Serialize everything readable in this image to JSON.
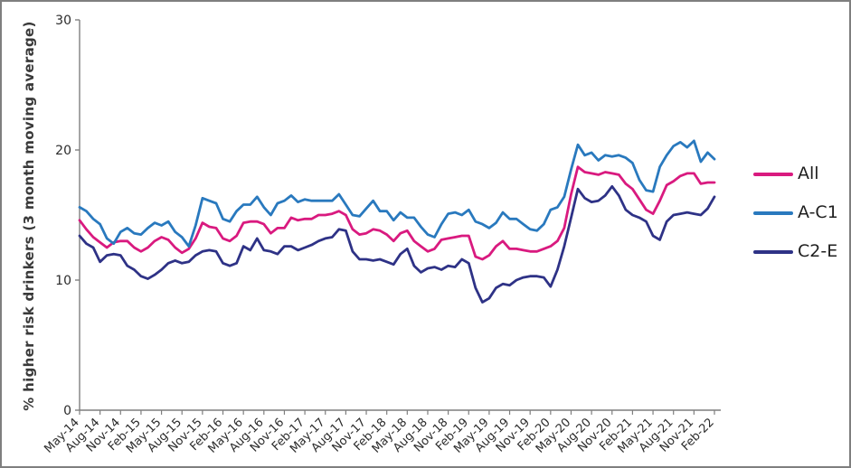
{
  "figure": {
    "background_color": "#ffffff",
    "border_color": "#7f7f7f",
    "axis_color": "#7f7f7f",
    "tick_label_color": "#2b2b2b"
  },
  "chart_data": {
    "type": "line",
    "title": "",
    "xlabel": "",
    "ylabel": "% higher risk drinkers (3 month moving average)",
    "ylim": [
      0,
      30
    ],
    "yticks": [
      0,
      10,
      20,
      30
    ],
    "grid": "off",
    "legend_position": "right",
    "x_tick_labels": [
      "May-14",
      "Aug-14",
      "Nov-14",
      "Feb-15",
      "May-15",
      "Aug-15",
      "Nov-15",
      "Feb-16",
      "May-16",
      "Aug-16",
      "Nov-16",
      "Feb-17",
      "May-17",
      "Aug-17",
      "Nov-17",
      "Feb-18",
      "May-18",
      "Aug-18",
      "Nov-18",
      "Feb-19",
      "May-19",
      "Aug-19",
      "Nov-19",
      "Feb-20",
      "May-20",
      "Aug-20",
      "Nov-20",
      "Feb-21",
      "May-21",
      "Aug-21",
      "Nov-21",
      "Feb-22"
    ],
    "x_tick_step": 3,
    "x": [
      "May-14",
      "Jun-14",
      "Jul-14",
      "Aug-14",
      "Sep-14",
      "Oct-14",
      "Nov-14",
      "Dec-14",
      "Jan-15",
      "Feb-15",
      "Mar-15",
      "Apr-15",
      "May-15",
      "Jun-15",
      "Jul-15",
      "Aug-15",
      "Sep-15",
      "Oct-15",
      "Nov-15",
      "Dec-15",
      "Jan-16",
      "Feb-16",
      "Mar-16",
      "Apr-16",
      "May-16",
      "Jun-16",
      "Jul-16",
      "Aug-16",
      "Sep-16",
      "Oct-16",
      "Nov-16",
      "Dec-16",
      "Jan-17",
      "Feb-17",
      "Mar-17",
      "Apr-17",
      "May-17",
      "Jun-17",
      "Jul-17",
      "Aug-17",
      "Sep-17",
      "Oct-17",
      "Nov-17",
      "Dec-17",
      "Jan-18",
      "Feb-18",
      "Mar-18",
      "Apr-18",
      "May-18",
      "Jun-18",
      "Jul-18",
      "Aug-18",
      "Sep-18",
      "Oct-18",
      "Nov-18",
      "Dec-18",
      "Jan-19",
      "Feb-19",
      "Mar-19",
      "Apr-19",
      "May-19",
      "Jun-19",
      "Jul-19",
      "Aug-19",
      "Sep-19",
      "Oct-19",
      "Nov-19",
      "Dec-19",
      "Jan-20",
      "Feb-20",
      "Mar-20",
      "Apr-20",
      "May-20",
      "Jun-20",
      "Jul-20",
      "Aug-20",
      "Sep-20",
      "Oct-20",
      "Nov-20",
      "Dec-20",
      "Jan-21",
      "Feb-21",
      "Mar-21",
      "Apr-21",
      "May-21",
      "Jun-21",
      "Jul-21",
      "Aug-21",
      "Sep-21",
      "Oct-21",
      "Nov-21",
      "Dec-21",
      "Jan-22",
      "Feb-22"
    ],
    "series": [
      {
        "name": "All",
        "color": "#d91a7f",
        "values": [
          14.6,
          13.9,
          13.3,
          12.9,
          12.5,
          12.9,
          13.0,
          13.0,
          12.5,
          12.2,
          12.5,
          13.0,
          13.3,
          13.1,
          12.5,
          12.1,
          12.4,
          13.2,
          14.4,
          14.1,
          14.0,
          13.2,
          13.0,
          13.4,
          14.4,
          14.5,
          14.5,
          14.3,
          13.6,
          14.0,
          14.0,
          14.8,
          14.6,
          14.7,
          14.7,
          15.0,
          15.0,
          15.1,
          15.3,
          15.0,
          13.9,
          13.5,
          13.6,
          13.9,
          13.8,
          13.5,
          13.0,
          13.6,
          13.8,
          13.0,
          12.6,
          12.2,
          12.4,
          13.1,
          13.2,
          13.3,
          13.4,
          13.4,
          11.8,
          11.6,
          11.9,
          12.6,
          13.0,
          12.4,
          12.4,
          12.3,
          12.2,
          12.2,
          12.4,
          12.6,
          13.0,
          14.0,
          16.6,
          18.7,
          18.3,
          18.2,
          18.1,
          18.3,
          18.2,
          18.1,
          17.4,
          17.0,
          16.2,
          15.4,
          15.1,
          16.1,
          17.3,
          17.6,
          18.0,
          18.2,
          18.2,
          17.4,
          17.5,
          17.5
        ]
      },
      {
        "name": "A-C1",
        "color": "#2979be",
        "values": [
          15.6,
          15.3,
          14.7,
          14.3,
          13.2,
          12.8,
          13.7,
          14.0,
          13.6,
          13.5,
          14.0,
          14.4,
          14.2,
          14.5,
          13.7,
          13.3,
          12.6,
          14.2,
          16.3,
          16.1,
          15.9,
          14.7,
          14.5,
          15.3,
          15.8,
          15.8,
          16.4,
          15.6,
          15.0,
          15.9,
          16.1,
          16.5,
          16.0,
          16.2,
          16.1,
          16.1,
          16.1,
          16.1,
          16.6,
          15.8,
          15.0,
          14.9,
          15.5,
          16.1,
          15.3,
          15.3,
          14.6,
          15.2,
          14.8,
          14.8,
          14.1,
          13.5,
          13.3,
          14.3,
          15.1,
          15.2,
          15.0,
          15.4,
          14.5,
          14.3,
          14.0,
          14.4,
          15.2,
          14.7,
          14.7,
          14.3,
          13.9,
          13.8,
          14.3,
          15.4,
          15.6,
          16.4,
          18.5,
          20.4,
          19.6,
          19.8,
          19.2,
          19.6,
          19.5,
          19.6,
          19.4,
          19.0,
          17.7,
          16.9,
          16.8,
          18.7,
          19.6,
          20.3,
          20.6,
          20.2,
          20.7,
          19.1,
          19.8,
          19.3
        ]
      },
      {
        "name": "C2-E",
        "color": "#2e3286",
        "values": [
          13.4,
          12.8,
          12.5,
          11.4,
          11.9,
          12.0,
          11.9,
          11.1,
          10.8,
          10.3,
          10.1,
          10.4,
          10.8,
          11.3,
          11.5,
          11.3,
          11.4,
          11.9,
          12.2,
          12.3,
          12.2,
          11.3,
          11.1,
          11.3,
          12.6,
          12.3,
          13.2,
          12.3,
          12.2,
          12.0,
          12.6,
          12.6,
          12.3,
          12.5,
          12.7,
          13.0,
          13.2,
          13.3,
          13.9,
          13.8,
          12.2,
          11.6,
          11.6,
          11.5,
          11.6,
          11.4,
          11.2,
          12.0,
          12.4,
          11.1,
          10.6,
          10.9,
          11.0,
          10.8,
          11.1,
          11.0,
          11.6,
          11.3,
          9.4,
          8.3,
          8.6,
          9.4,
          9.7,
          9.6,
          10.0,
          10.2,
          10.3,
          10.3,
          10.2,
          9.5,
          10.8,
          12.6,
          14.8,
          17.0,
          16.3,
          16.0,
          16.1,
          16.5,
          17.2,
          16.5,
          15.4,
          15.0,
          14.8,
          14.5,
          13.4,
          13.1,
          14.5,
          15.0,
          15.1,
          15.2,
          15.1,
          15.0,
          15.5,
          16.4
        ]
      }
    ]
  }
}
